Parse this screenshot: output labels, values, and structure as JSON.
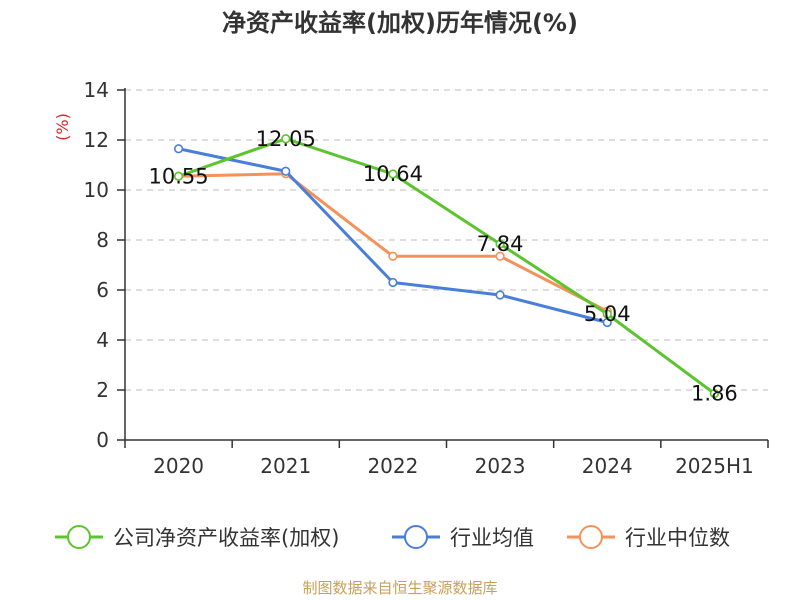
{
  "chart_data": {
    "type": "line",
    "title": "净资产收益率(加权)历年情况(%)",
    "ylabel": "(%)",
    "categories": [
      "2020",
      "2021",
      "2022",
      "2023",
      "2024",
      "2025H1"
    ],
    "ylim": [
      0,
      14
    ],
    "yticks": [
      0,
      2,
      4,
      6,
      8,
      10,
      12,
      14
    ],
    "grid": true,
    "legend_position": "bottom",
    "series": [
      {
        "name": "公司净资产收益率(加权)",
        "color": "#5cc42e",
        "values": [
          10.55,
          12.05,
          10.64,
          7.84,
          5.04,
          1.86
        ],
        "labels": [
          "10.55",
          "12.05",
          "10.64",
          "7.84",
          "5.04",
          "1.86"
        ]
      },
      {
        "name": "行业均值",
        "color": "#4a7fd9",
        "values": [
          11.65,
          10.75,
          6.3,
          5.8,
          4.7,
          null
        ]
      },
      {
        "name": "行业中位数",
        "color": "#f5925a",
        "values": [
          10.55,
          10.65,
          7.35,
          7.35,
          5.15,
          null
        ]
      }
    ]
  },
  "source": "制图数据来自恒生聚源数据库"
}
